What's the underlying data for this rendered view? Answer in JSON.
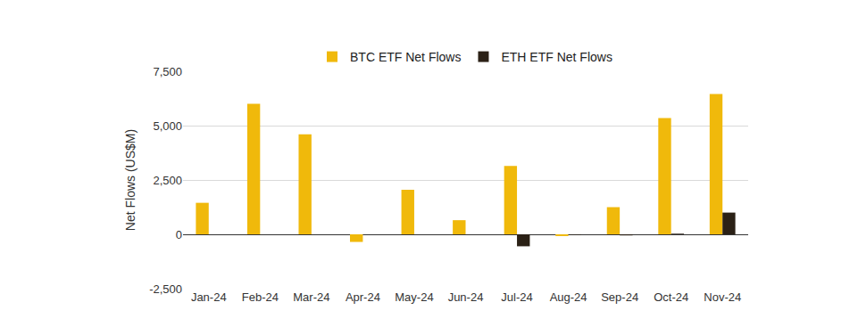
{
  "chart_data": {
    "type": "bar",
    "y_label": "Net Flows (US$M)",
    "categories": [
      "Jan-24",
      "Feb-24",
      "Mar-24",
      "Apr-24",
      "May-24",
      "Jun-24",
      "Jul-24",
      "Aug-24",
      "Sep-24",
      "Oct-24",
      "Nov-24"
    ],
    "series": [
      {
        "name": "BTC ETF Net Flows",
        "color": "#F0B90B",
        "values": [
          1450,
          6000,
          4600,
          -350,
          2050,
          650,
          3150,
          -80,
          1250,
          5350,
          6450
        ]
      },
      {
        "name": "ETH ETF Net Flows",
        "color": "#2B2116",
        "values": [
          null,
          null,
          null,
          null,
          null,
          null,
          -550,
          -20,
          -50,
          30,
          1000
        ]
      }
    ],
    "ylim": [
      -2500,
      7500
    ],
    "yticks": [
      {
        "value": -2500,
        "label": "-2,500"
      },
      0,
      {
        "value": 2500,
        "label": "2,500"
      },
      {
        "value": 5000,
        "label": "5,000"
      },
      {
        "value": 7500,
        "label": "7,500"
      }
    ],
    "grid": true,
    "legend": "top"
  }
}
